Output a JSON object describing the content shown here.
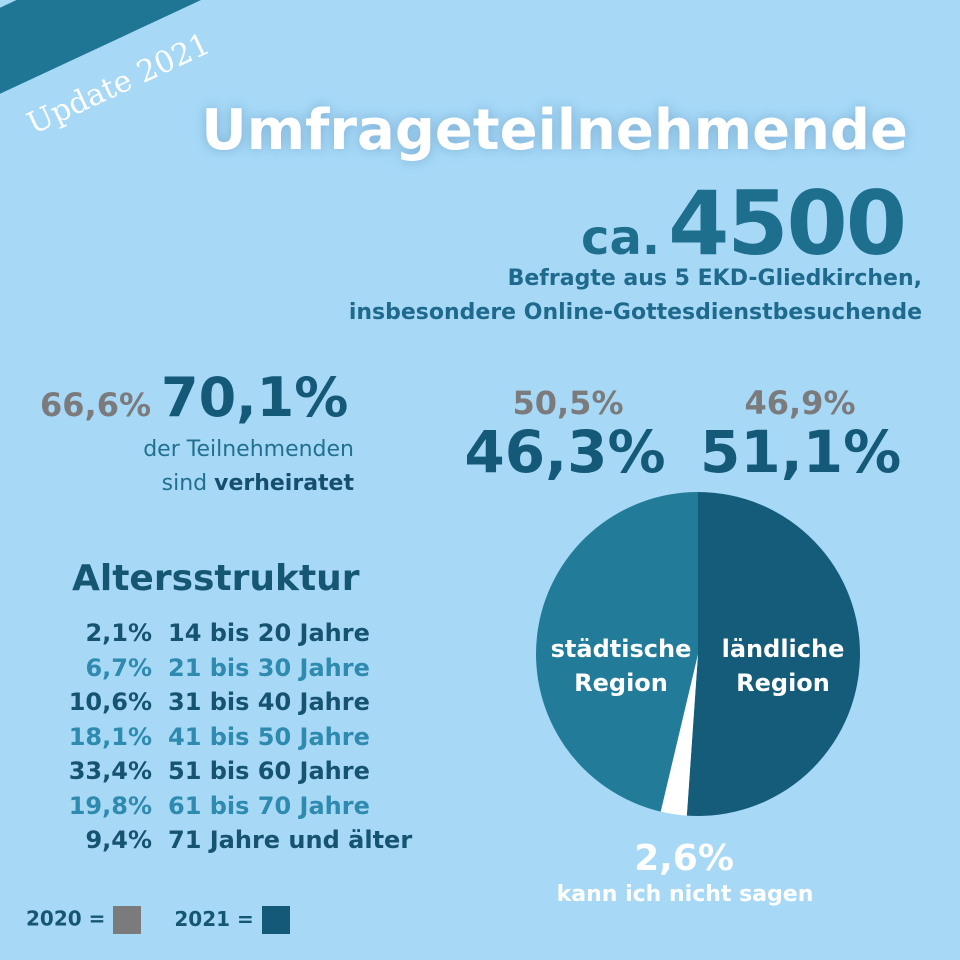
{
  "badge": "Update 2021",
  "title": "Umfrageteilnehmende",
  "participants": {
    "prefix": "ca.",
    "value": "4500"
  },
  "subtitle_line1": "Befragte aus 5 EKD-Gliedkirchen,",
  "subtitle_line2": "insbesondere Online-Gottesdienstbesuchende",
  "married": {
    "prev": "66,6%",
    "cur": "70,1%",
    "text_line1": "der Teilnehmenden",
    "text_line2_prefix": "sind",
    "text_line2_bold": "verheiratet"
  },
  "age": {
    "title": "Altersstruktur",
    "rows": [
      {
        "pct": "2,1%",
        "label": "14 bis 20 Jahre"
      },
      {
        "pct": "6,7%",
        "label": "21 bis 30 Jahre"
      },
      {
        "pct": "10,6%",
        "label": "31 bis 40 Jahre"
      },
      {
        "pct": "18,1%",
        "label": "41 bis 50 Jahre"
      },
      {
        "pct": "33,4%",
        "label": "51 bis 60 Jahre"
      },
      {
        "pct": "19,8%",
        "label": "61 bis 70 Jahre"
      },
      {
        "pct": "9,4%",
        "label": "71 Jahre und älter"
      }
    ]
  },
  "region": {
    "urban": {
      "prev": "50,5%",
      "cur": "46,3%",
      "label_line1": "städtische",
      "label_line2": "Region"
    },
    "rural": {
      "prev": "46,9%",
      "cur": "51,1%",
      "label_line1": "ländliche",
      "label_line2": "Region"
    },
    "dont_know": {
      "value": "2,6%",
      "label": "kann ich nicht sagen"
    }
  },
  "legend": {
    "y2020": "2020 =",
    "y2021": "2021 ="
  },
  "colors": {
    "background": "#a7d9f7",
    "ribbon": "#1f7594",
    "year_2020": "#7b7b7d",
    "year_2021": "#145a78",
    "urban": "#237b9a",
    "rural": "#155c7b",
    "dont_know": "#ffffff"
  },
  "chart_data": {
    "type": "pie",
    "slices": [
      {
        "name": "ländliche Region",
        "value": 51.1
      },
      {
        "name": "kann ich nicht sagen",
        "value": 2.6
      },
      {
        "name": "städtische Region",
        "value": 46.3
      }
    ]
  }
}
